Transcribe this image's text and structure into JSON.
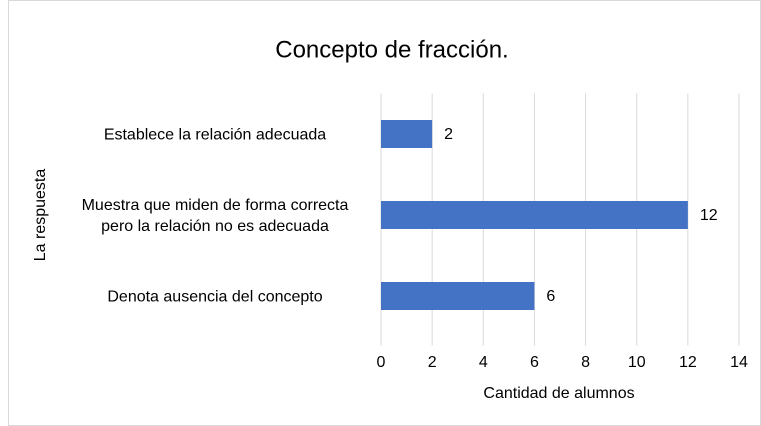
{
  "chart_data": {
    "type": "bar",
    "orientation": "horizontal",
    "title": "Concepto de fracción.",
    "categories": [
      "Establece la relación adecuada",
      "Muestra que miden de forma correcta pero la relación no es adecuada",
      "Denota ausencia del concepto"
    ],
    "values": [
      2,
      12,
      6
    ],
    "color": "#4472c4",
    "xlabel": "Cantidad de alumnos",
    "ylabel": "La respuesta",
    "xlim": [
      0,
      14
    ],
    "xticks": [
      0,
      2,
      4,
      6,
      8,
      10,
      12,
      14
    ],
    "grid": true
  }
}
